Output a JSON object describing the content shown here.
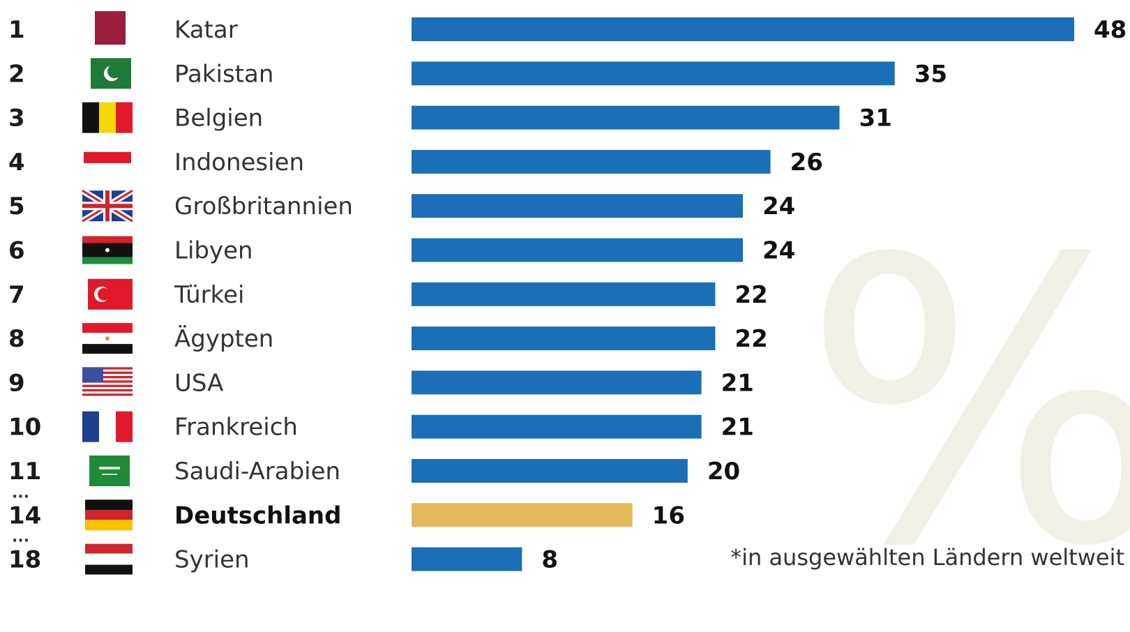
{
  "chart_data": {
    "type": "bar",
    "orientation": "horizontal",
    "categories": [
      "Katar",
      "Pakistan",
      "Belgien",
      "Indonesien",
      "Großbritannien",
      "Libyen",
      "Türkei",
      "Ägypten",
      "USA",
      "Frankreich",
      "Saudi-Arabien",
      "Deutschland",
      "Syrien"
    ],
    "ranks": [
      "1",
      "2",
      "3",
      "4",
      "5",
      "6",
      "7",
      "8",
      "9",
      "10",
      "11",
      "14",
      "18"
    ],
    "values": [
      48,
      35,
      31,
      26,
      24,
      24,
      22,
      22,
      21,
      21,
      20,
      16,
      8
    ],
    "highlight": "Deutschland",
    "gaps_before": [
      "14",
      "18"
    ],
    "gap_marker": "...",
    "footnote": "*in ausgewählten Ländern weltweit",
    "watermark": "%",
    "xlim": [
      0,
      48
    ],
    "colors": {
      "bar": "#1a6fb8",
      "highlight": "#e3b959",
      "text": "#1a1a1a"
    }
  },
  "flags": [
    {
      "country": "Katar",
      "type": "qatar"
    },
    {
      "country": "Pakistan",
      "type": "pakistan"
    },
    {
      "country": "Belgien",
      "type": "belgium"
    },
    {
      "country": "Indonesien",
      "type": "indonesia"
    },
    {
      "country": "Großbritannien",
      "type": "uk"
    },
    {
      "country": "Libyen",
      "type": "libya"
    },
    {
      "country": "Türkei",
      "type": "turkey"
    },
    {
      "country": "Ägypten",
      "type": "egypt"
    },
    {
      "country": "USA",
      "type": "usa"
    },
    {
      "country": "Frankreich",
      "type": "france"
    },
    {
      "country": "Saudi-Arabien",
      "type": "saudi"
    },
    {
      "country": "Deutschland",
      "type": "germany"
    },
    {
      "country": "Syrien",
      "type": "syria"
    }
  ]
}
